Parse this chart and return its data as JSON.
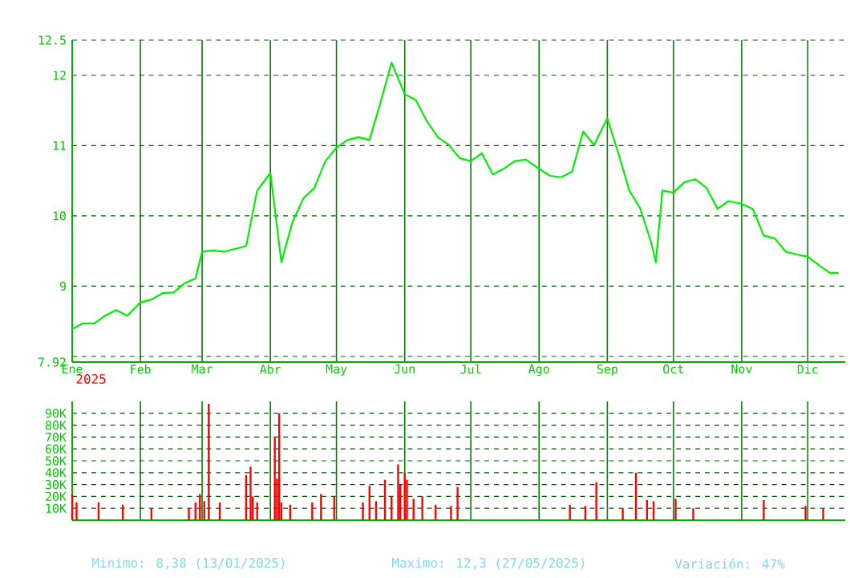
{
  "chart_data": [
    {
      "type": "line",
      "xlim": [
        "2025-01-01",
        "2025-12-18"
      ],
      "xticks": [
        {
          "value": "2025-01-01",
          "label": "Ene"
        },
        {
          "value": "2025-02-01",
          "label": "Feb"
        },
        {
          "value": "2025-03-01",
          "label": "Mar"
        },
        {
          "value": "2025-04-01",
          "label": "Abr"
        },
        {
          "value": "2025-05-01",
          "label": "May"
        },
        {
          "value": "2025-06-01",
          "label": "Jun"
        },
        {
          "value": "2025-07-01",
          "label": "Jul"
        },
        {
          "value": "2025-08-01",
          "label": "Ago"
        },
        {
          "value": "2025-09-01",
          "label": "Sep"
        },
        {
          "value": "2025-10-01",
          "label": "Oct"
        },
        {
          "value": "2025-11-01",
          "label": "Nov"
        },
        {
          "value": "2025-12-01",
          "label": "Dic"
        }
      ],
      "ylim": [
        7.92,
        12.5
      ],
      "yticks": [
        7.92,
        {
          "value": 8,
          "label": null
        },
        9,
        10,
        11,
        12,
        12.5
      ],
      "grid": true,
      "marker": "none",
      "line_style": "solid",
      "x": [
        "2025-01-01",
        "2025-01-06",
        "2025-01-11",
        "2025-01-16",
        "2025-01-21",
        "2025-01-26",
        "2025-02-01",
        "2025-02-06",
        "2025-02-11",
        "2025-02-16",
        "2025-02-21",
        "2025-02-26",
        "2025-03-01",
        "2025-03-06",
        "2025-03-11",
        "2025-03-16",
        "2025-03-21",
        "2025-03-26",
        "2025-04-01",
        "2025-04-06",
        "2025-04-11",
        "2025-04-16",
        "2025-04-21",
        "2025-04-26",
        "2025-05-01",
        "2025-05-06",
        "2025-05-11",
        "2025-05-16",
        "2025-05-21",
        "2025-05-26",
        "2025-06-01",
        "2025-06-06",
        "2025-06-11",
        "2025-06-16",
        "2025-06-21",
        "2025-06-26",
        "2025-07-01",
        "2025-07-06",
        "2025-07-11",
        "2025-07-16",
        "2025-07-21",
        "2025-07-26",
        "2025-08-01",
        "2025-08-06",
        "2025-08-11",
        "2025-08-16",
        "2025-08-21",
        "2025-08-26",
        "2025-09-01",
        "2025-09-06",
        "2025-09-11",
        "2025-09-16",
        "2025-09-21",
        "2025-09-23",
        "2025-09-26",
        "2025-10-01",
        "2025-10-06",
        "2025-10-11",
        "2025-10-16",
        "2025-10-21",
        "2025-10-26",
        "2025-11-01",
        "2025-11-06",
        "2025-11-11",
        "2025-11-16",
        "2025-11-21",
        "2025-11-26",
        "2025-12-01",
        "2025-12-06",
        "2025-12-11",
        "2025-12-15"
      ],
      "series": [
        {
          "color": "#00ee00",
          "values": [
            8.39,
            8.47,
            8.47,
            8.58,
            8.66,
            8.58,
            8.77,
            8.81,
            8.9,
            8.91,
            9.04,
            9.11,
            9.49,
            9.51,
            9.49,
            9.53,
            9.57,
            10.36,
            10.61,
            9.34,
            9.91,
            10.25,
            10.4,
            10.78,
            10.97,
            11.08,
            11.12,
            11.08,
            11.61,
            12.18,
            11.73,
            11.65,
            11.35,
            11.12,
            11.01,
            10.82,
            10.78,
            10.89,
            10.59,
            10.67,
            10.78,
            10.8,
            10.67,
            10.57,
            10.55,
            10.63,
            11.2,
            11.01,
            11.39,
            10.89,
            10.36,
            10.1,
            9.61,
            9.34,
            10.36,
            10.33,
            10.48,
            10.52,
            10.4,
            10.1,
            10.21,
            10.17,
            10.1,
            9.72,
            9.68,
            9.49,
            9.45,
            9.42,
            9.3,
            9.19,
            9.19
          ]
        }
      ],
      "annotations": [
        "2025",
        "Minimo: 8,38 (13/01/2025)",
        "Maximo: 12,3 (27/05/2025)",
        "Variación: 47%"
      ]
    },
    {
      "type": "bar",
      "xlim": [
        "2025-01-01",
        "2025-12-18"
      ],
      "tick_labels": "y",
      "grid": true,
      "xticks": [
        {
          "value": "2025-02-01",
          "label": null
        },
        {
          "value": "2025-03-01",
          "label": null
        },
        {
          "value": "2025-04-01",
          "label": null
        },
        {
          "value": "2025-05-01",
          "label": null
        },
        {
          "value": "2025-06-01",
          "label": null
        },
        {
          "value": "2025-07-01",
          "label": null
        },
        {
          "value": "2025-08-01",
          "label": null
        },
        {
          "value": "2025-09-01",
          "label": null
        },
        {
          "value": "2025-10-01",
          "label": null
        },
        {
          "value": "2025-11-01",
          "label": null
        },
        {
          "value": "2025-12-01",
          "label": null
        }
      ],
      "ylim": [
        0,
        100000
      ],
      "yticks": [
        {
          "value": 10000,
          "label": "10K"
        },
        {
          "value": 20000,
          "label": "20K"
        },
        {
          "value": 30000,
          "label": "30K"
        },
        {
          "value": 40000,
          "label": "40K"
        },
        {
          "value": 50000,
          "label": "50K"
        },
        {
          "value": 60000,
          "label": "60K"
        },
        {
          "value": 70000,
          "label": "70K"
        },
        {
          "value": 80000,
          "label": "80K"
        },
        {
          "value": 90000,
          "label": "90K"
        }
      ],
      "x": [
        "2025-01-01",
        "2025-01-03",
        "2025-01-13",
        "2025-01-24",
        "2025-02-06",
        "2025-02-23",
        "2025-02-26",
        "2025-02-28",
        "2025-03-02",
        "2025-03-04",
        "2025-03-09",
        "2025-03-21",
        "2025-03-23",
        "2025-03-24",
        "2025-03-26",
        "2025-04-03",
        "2025-04-04",
        "2025-04-05",
        "2025-04-06",
        "2025-04-10",
        "2025-04-20",
        "2025-04-24",
        "2025-04-30",
        "2025-05-13",
        "2025-05-16",
        "2025-05-19",
        "2025-05-23",
        "2025-05-26",
        "2025-05-29",
        "2025-05-30",
        "2025-06-01",
        "2025-06-02",
        "2025-06-05",
        "2025-06-09",
        "2025-06-15",
        "2025-06-22",
        "2025-06-25",
        "2025-08-15",
        "2025-08-22",
        "2025-08-27",
        "2025-09-08",
        "2025-09-14",
        "2025-09-19",
        "2025-09-22",
        "2025-10-02",
        "2025-10-10",
        "2025-11-11",
        "2025-11-30",
        "2025-12-08"
      ],
      "series": [
        {
          "color": "#ff0000",
          "values": [
            22000,
            15000,
            15000,
            13000,
            10000,
            10000,
            15000,
            22000,
            16000,
            98000,
            15000,
            38000,
            45000,
            20000,
            15000,
            70000,
            35000,
            90000,
            15000,
            13000,
            15000,
            22000,
            20000,
            15000,
            29000,
            16000,
            34000,
            20000,
            47000,
            30000,
            40000,
            34000,
            18000,
            20000,
            13000,
            12000,
            28000,
            13000,
            12000,
            32000,
            10000,
            40000,
            17000,
            16000,
            18000,
            10000,
            17000,
            12000,
            10000
          ]
        }
      ]
    }
  ]
}
